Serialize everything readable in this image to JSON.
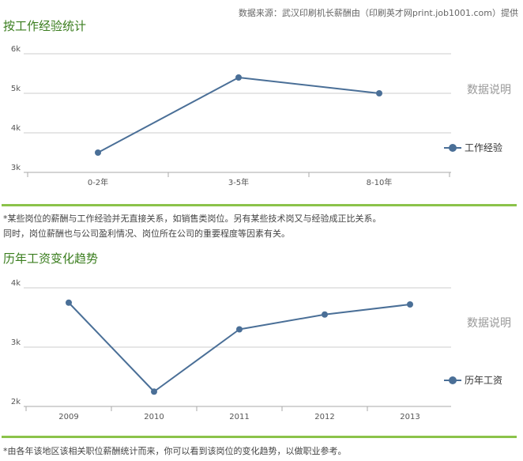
{
  "source_text": "数据来源：武汉印刷机长薪酬由（印刷英才网print.job1001.com）提供",
  "sections": [
    {
      "title": "按工作经验统计",
      "description_link": "数据说明",
      "notes": [
        "*某些岗位的薪酬与工作经验并无直接关系，如销售类岗位。另有某些技术岗又与经验成正比关系。",
        "同时，岗位薪酬也与公司盈利情况、岗位所在公司的重要程度等因素有关。"
      ]
    },
    {
      "title": "历年工资变化趋势",
      "description_link": "数据说明",
      "notes": [
        "*由各年该地区该相关职位薪酬统计而来，你可以看到该岗位的变化趋势，以做职业参考。"
      ]
    }
  ],
  "series_color": "#4a6f97",
  "chart_data": [
    {
      "type": "line",
      "categories": [
        "0-2年",
        "3-5年",
        "8-10年"
      ],
      "series": [
        {
          "name": "工作经验",
          "values": [
            3.5,
            5.4,
            5.0
          ]
        }
      ],
      "ylim": [
        3,
        6
      ],
      "yticks": [
        3,
        4,
        5,
        6
      ],
      "ytick_labels": [
        "3k",
        "4k",
        "5k",
        "6k"
      ],
      "grid": true,
      "legend": "right"
    },
    {
      "type": "line",
      "categories": [
        "2009",
        "2010",
        "2011",
        "2012",
        "2013"
      ],
      "series": [
        {
          "name": "历年工资",
          "values": [
            3.75,
            2.25,
            3.3,
            3.55,
            3.72
          ]
        }
      ],
      "ylim": [
        2,
        4
      ],
      "yticks": [
        2,
        3,
        4
      ],
      "ytick_labels": [
        "2k",
        "3k",
        "4k"
      ],
      "grid": true,
      "legend": "right"
    }
  ]
}
